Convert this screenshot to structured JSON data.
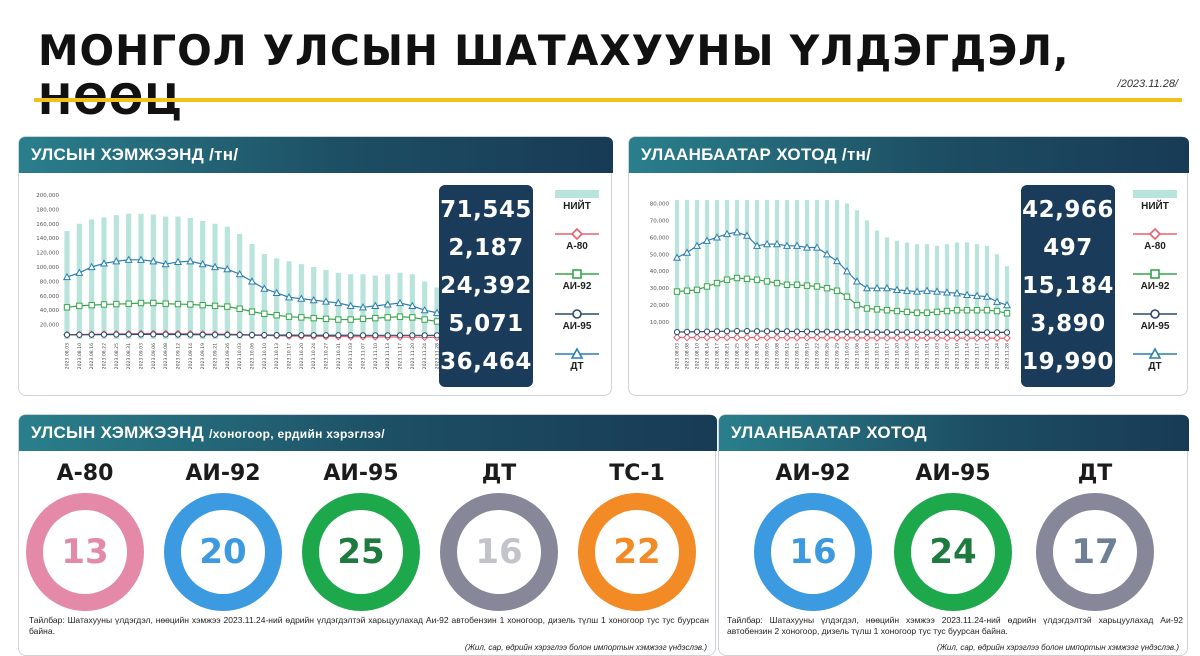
{
  "header": {
    "title": "МОНГОЛ УЛСЫН ШАТАХУУНЫ ҮЛДЭГДЭЛ, НӨӨЦ",
    "date": "/2023.11.28/"
  },
  "colors": {
    "total": "#b9e4dc",
    "a80": "#e8606e",
    "ai92": "#35a64b",
    "ai95": "#2b4a6b",
    "dt": "#2d7fb0",
    "ts1": "#f28a25",
    "gold": "#f2c21b"
  },
  "legend": {
    "total": "НИЙТ",
    "a80": "А-80",
    "ai92": "АИ-92",
    "ai95": "АИ-95",
    "dt": "ДТ"
  },
  "national": {
    "title": "УЛСЫН ХЭМЖЭЭНД /тн/",
    "values": [
      "71,545",
      "2,187",
      "24,392",
      "5,071",
      "36,464"
    ]
  },
  "ub": {
    "title": "УЛААНБААТАР ХОТОД /тн/",
    "values": [
      "42,966",
      "497",
      "15,184",
      "3,890",
      "19,990"
    ]
  },
  "days_national": {
    "title": "УЛСЫН ХЭМЖЭЭНД",
    "subtitle": "/хоногоор, ердийн хэрэглээ/",
    "items": [
      {
        "label": "А-80",
        "value": "13",
        "color": "#e48aa8",
        "text_color": "#e48aa8"
      },
      {
        "label": "АИ-92",
        "value": "20",
        "color": "#3b9ae0",
        "text_color": "#3b9ae0"
      },
      {
        "label": "АИ-95",
        "value": "25",
        "color": "#1ea84c",
        "text_color": "#1e7a3e"
      },
      {
        "label": "ДТ",
        "value": "16",
        "color": "#87879a",
        "text_color": "#c3c3cc"
      },
      {
        "label": "ТС-1",
        "value": "22",
        "color": "#f28a25",
        "text_color": "#f28a25"
      }
    ],
    "note": "Тайлбар: Шатахууны үлдэгдэл, нөөцийн хэмжээ 2023.11.24-ний өдрийн үлдэгдэлтэй харьцуулахад Аи-92 автобензин 1 хоногоор, дизель түлш 1 хоногоор тус тус буурсан байна.",
    "source": "(Жил, сар, өдрийн хэрэглээ болон импортын хэмжээг үндэслэв.)"
  },
  "days_ub": {
    "title": "УЛААНБААТАР ХОТОД",
    "items": [
      {
        "label": "АИ-92",
        "value": "16",
        "color": "#3b9ae0",
        "text_color": "#3b9ae0"
      },
      {
        "label": "АИ-95",
        "value": "24",
        "color": "#1ea84c",
        "text_color": "#1e7a3e"
      },
      {
        "label": "ДТ",
        "value": "17",
        "color": "#87879a",
        "text_color": "#6f7f96"
      }
    ],
    "note": "Тайлбар: Шатахууны үлдэгдэл, нөөцийн хэмжээ 2023.11.24-ний өдрийн үлдэгдэлтэй харьцуулахад Аи-92 автобензин 2 хоногоор, дизель түлш 1 хоногоор тус тус буурсан байна.",
    "source": "(Жил, сар, өдрийн хэрэглээ болон импортын хэмжээг үндэслэв.)"
  },
  "chart_data": [
    {
      "type": "line",
      "title": "УЛСЫН ХЭМЖЭЭНД /тн/",
      "ylim": [
        0,
        200000
      ],
      "yticks": [
        "20,000",
        "40,000",
        "60,000",
        "80,000",
        "100,000",
        "120,000",
        "140,000",
        "160,000",
        "180,000",
        "200,000"
      ],
      "x": [
        "2023.08.03",
        "2023.08.10",
        "2023.08.16",
        "2023.08.22",
        "2023.08.25",
        "2023.08.31",
        "2023.09.03",
        "2023.09.06",
        "2023.09.08",
        "2023.09.12",
        "2023.09.14",
        "2023.09.19",
        "2023.09.21",
        "2023.09.26",
        "2023.10.03",
        "2023.10.06",
        "2023.10.10",
        "2023.10.13",
        "2023.10.17",
        "2023.10.20",
        "2023.10.24",
        "2023.10.27",
        "2023.10.31",
        "2023.11.03",
        "2023.11.07",
        "2023.11.10",
        "2023.11.13",
        "2023.11.17",
        "2023.11.20",
        "2023.11.24",
        "2023.11.28"
      ],
      "series": [
        {
          "name": "НИЙТ",
          "values": [
            150000,
            160000,
            166000,
            169000,
            172000,
            174000,
            174000,
            173000,
            170000,
            170000,
            168000,
            164000,
            160000,
            156000,
            146000,
            132000,
            118000,
            112000,
            108000,
            104000,
            100000,
            96000,
            92000,
            90000,
            90000,
            88000,
            90000,
            92000,
            90000,
            80000,
            71545
          ]
        },
        {
          "name": "А-80",
          "values": [
            6000,
            6200,
            6500,
            6800,
            7000,
            7200,
            7500,
            7600,
            7500,
            7400,
            7200,
            7000,
            6800,
            6600,
            6200,
            5500,
            5000,
            4600,
            4200,
            4000,
            3800,
            3600,
            3400,
            3200,
            3100,
            3000,
            2900,
            2800,
            2600,
            2400,
            2187
          ]
        },
        {
          "name": "АИ-92",
          "values": [
            44000,
            46000,
            47000,
            48000,
            48500,
            49000,
            50000,
            50000,
            49000,
            48500,
            48000,
            47000,
            46000,
            45000,
            42000,
            38000,
            35000,
            33000,
            31000,
            30000,
            29000,
            28000,
            27000,
            27000,
            28000,
            29000,
            30000,
            31000,
            30000,
            27000,
            24392
          ]
        },
        {
          "name": "АИ-95",
          "values": [
            5800,
            5900,
            6000,
            6100,
            6200,
            6300,
            6400,
            6400,
            6300,
            6200,
            6100,
            6000,
            5900,
            5800,
            5700,
            5600,
            5500,
            5400,
            5400,
            5300,
            5300,
            5200,
            5200,
            5200,
            5100,
            5100,
            5100,
            5100,
            5100,
            5100,
            5071
          ]
        },
        {
          "name": "ДТ",
          "values": [
            86000,
            92000,
            100000,
            105000,
            108000,
            110000,
            110000,
            108000,
            104000,
            107000,
            108000,
            104000,
            100000,
            97000,
            90000,
            80000,
            70000,
            64000,
            58000,
            56000,
            54000,
            52000,
            50000,
            46000,
            44000,
            46000,
            48000,
            50000,
            46000,
            40000,
            36464
          ]
        }
      ]
    },
    {
      "type": "line",
      "title": "УЛААНБААТАР ХОТОД /тн/",
      "ylim": [
        0,
        85000
      ],
      "yticks": [
        "10,000",
        "20,000",
        "30,000",
        "40,000",
        "50,000",
        "60,000",
        "70,000",
        "80,000"
      ],
      "x": [
        "2023.08.03",
        "2023.08.08",
        "2023.08.10",
        "2023.08.14",
        "2023.08.17",
        "2023.08.21",
        "2023.08.25",
        "2023.08.28",
        "2023.08.31",
        "2023.09.05",
        "2023.09.08",
        "2023.09.12",
        "2023.09.15",
        "2023.09.19",
        "2023.09.22",
        "2023.09.26",
        "2023.09.29",
        "2023.10.03",
        "2023.10.06",
        "2023.10.10",
        "2023.10.13",
        "2023.10.17",
        "2023.10.20",
        "2023.10.24",
        "2023.10.27",
        "2023.10.31",
        "2023.11.03",
        "2023.11.07",
        "2023.11.10",
        "2023.11.14",
        "2023.11.17",
        "2023.11.21",
        "2023.11.24",
        "2023.11.28"
      ],
      "series": [
        {
          "name": "НИЙТ",
          "values": [
            82000,
            82000,
            82000,
            82000,
            82000,
            82000,
            82000,
            82000,
            82000,
            82000,
            82000,
            82000,
            82000,
            82000,
            82000,
            82000,
            82000,
            80000,
            76000,
            70000,
            64000,
            60000,
            58000,
            57000,
            56000,
            56000,
            55000,
            56000,
            57000,
            57000,
            56000,
            55000,
            50000,
            42966
          ]
        },
        {
          "name": "А-80",
          "values": [
            900,
            900,
            880,
            860,
            850,
            840,
            830,
            820,
            800,
            790,
            780,
            770,
            760,
            750,
            740,
            720,
            700,
            680,
            660,
            640,
            620,
            610,
            600,
            590,
            580,
            570,
            560,
            550,
            540,
            530,
            520,
            510,
            505,
            497
          ]
        },
        {
          "name": "АИ-92",
          "values": [
            28000,
            28500,
            29000,
            31000,
            33000,
            35000,
            36000,
            35500,
            35000,
            34000,
            33000,
            32000,
            32000,
            31500,
            31000,
            30000,
            28500,
            25000,
            20000,
            18000,
            17500,
            17000,
            16500,
            16000,
            15500,
            15500,
            16000,
            16500,
            17000,
            17000,
            17000,
            17000,
            16500,
            15184
          ]
        },
        {
          "name": "АИ-95",
          "values": [
            4100,
            4200,
            4300,
            4400,
            4500,
            4600,
            4700,
            4700,
            4600,
            4600,
            4500,
            4500,
            4400,
            4400,
            4300,
            4300,
            4200,
            4200,
            4100,
            4100,
            4000,
            4000,
            4000,
            4000,
            3950,
            3950,
            3950,
            3900,
            3900,
            3900,
            3900,
            3900,
            3890,
            3890
          ]
        },
        {
          "name": "ДТ",
          "values": [
            48000,
            51000,
            55000,
            58000,
            60000,
            62000,
            63000,
            61000,
            55000,
            56000,
            56000,
            55000,
            55000,
            54000,
            54000,
            50000,
            46000,
            40000,
            34000,
            30000,
            30000,
            30000,
            29000,
            28500,
            28000,
            28500,
            28000,
            27500,
            27000,
            26000,
            25500,
            25000,
            22000,
            19990
          ]
        }
      ]
    }
  ]
}
